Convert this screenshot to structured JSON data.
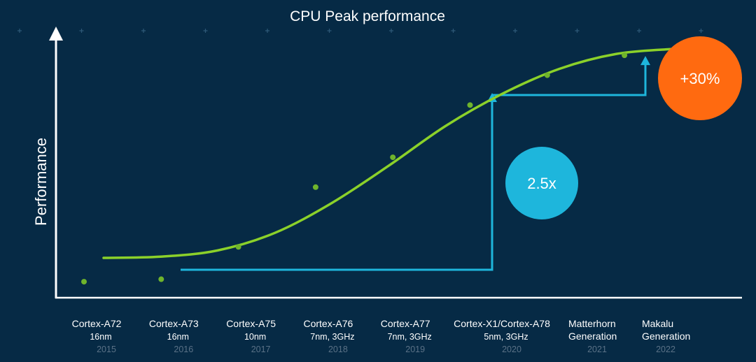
{
  "chart_data": {
    "type": "scatter",
    "title": "CPU Peak performance",
    "ylabel": "Performance",
    "xlabel": "",
    "categories": [
      {
        "name": "Cortex-A72",
        "sub": "16nm",
        "year": "2015"
      },
      {
        "name": "Cortex-A73",
        "sub": "16nm",
        "year": "2016"
      },
      {
        "name": "Cortex-A75",
        "sub": "10nm",
        "year": "2017"
      },
      {
        "name": "Cortex-A76",
        "sub": "7nm, 3GHz",
        "year": "2018"
      },
      {
        "name": "Cortex-A77",
        "sub": "7nm, 3GHz",
        "year": "2019"
      },
      {
        "name": "Cortex-X1/Cortex-A78",
        "sub": "5nm, 3GHz",
        "year": "2020"
      },
      {
        "name": "Matterhorn",
        "sub": "Generation",
        "year": "2021"
      },
      {
        "name": "Makalu",
        "sub": "Generation",
        "year": "2022"
      }
    ],
    "values": [
      0.07,
      0.08,
      0.21,
      0.45,
      0.57,
      0.78,
      0.9,
      0.98
    ],
    "trend": [
      0.16,
      0.165,
      0.19,
      0.26,
      0.38,
      0.53,
      0.69,
      0.82,
      0.92,
      0.98,
      1.0
    ],
    "ylim": [
      0,
      1
    ],
    "annotations": [
      {
        "label": "2.5x",
        "from_category": 1,
        "to_category": 5,
        "from_value": 0.16,
        "to_value": 0.84,
        "color": "#1eb6dc"
      },
      {
        "label": "+30%",
        "from_category": 5,
        "to_category": 7,
        "from_value": 0.84,
        "to_value": 0.98,
        "color": "#ff6a10"
      }
    ],
    "colors": {
      "background": "#062a45",
      "trend": "#8bd12a",
      "points": "#6fb42c",
      "arrows": "#1eb6dc",
      "axis": "#ffffff"
    }
  }
}
